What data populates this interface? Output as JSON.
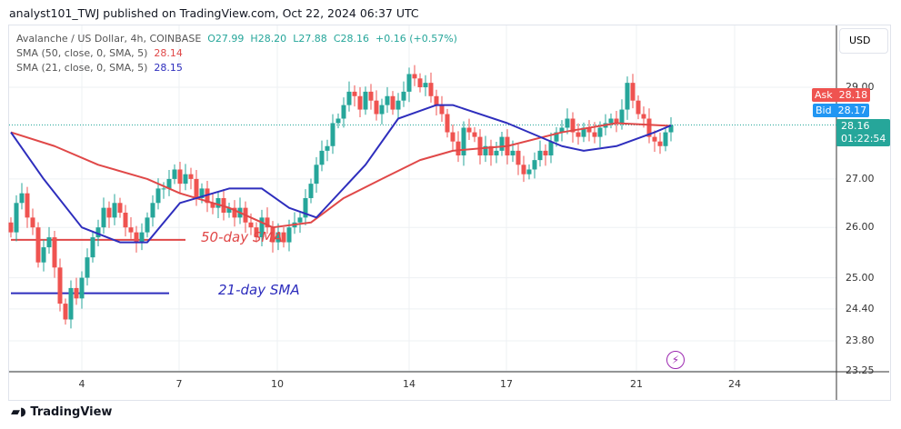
{
  "header": {
    "published": "analyst101_TWJ published on TradingView.com, Oct 22, 2024 06:37 UTC"
  },
  "legend": {
    "symbol": "Avalanche / US Dollar, 4h, COINBASE",
    "o": "O27.99",
    "h": "H28.20",
    "l": "L27.88",
    "c": "C28.16",
    "change": "+0.16 (+0.57%)",
    "sma50_label": "SMA (50, close, 0, SMA, 5)",
    "sma50_value": "28.14",
    "sma21_label": "SMA (21, close, 0, SMA, 5)",
    "sma21_value": "28.15"
  },
  "price_axis": {
    "currency": "USD",
    "scale": "log",
    "ticks": [
      "29.00",
      "27.00",
      "26.00",
      "25.00",
      "24.40",
      "23.80",
      "23.25"
    ],
    "ask_label": "Ask",
    "ask": "28.18",
    "bid_label": "Bid",
    "bid": "28.17",
    "last": "28.16",
    "countdown": "01:22:54"
  },
  "time_axis": {
    "ticks": [
      "4",
      "7",
      "10",
      "14",
      "17",
      "21",
      "24"
    ]
  },
  "annotations": {
    "sma50": "50-day SMA",
    "sma21": "21-day SMA"
  },
  "footer": {
    "brand": "TradingView"
  },
  "colors": {
    "up": "#26a69a",
    "down": "#ef5350",
    "sma50": "#e04848",
    "sma21": "#2e2ebd",
    "ask": "#ef5350",
    "bid": "#2196f3"
  },
  "chart_data": {
    "type": "candlestick",
    "interval": "4h",
    "ylim": [
      23.25,
      29.9
    ],
    "grid": true,
    "closes": [
      25.9,
      26.5,
      26.7,
      26.2,
      26.0,
      25.3,
      25.6,
      25.8,
      25.2,
      24.5,
      24.2,
      24.8,
      24.6,
      25.0,
      25.4,
      25.8,
      26.0,
      26.4,
      26.2,
      26.5,
      26.3,
      26.0,
      25.9,
      25.7,
      25.9,
      26.2,
      26.5,
      26.8,
      26.8,
      27.0,
      27.2,
      26.9,
      27.1,
      27.0,
      26.6,
      26.8,
      26.5,
      26.4,
      26.6,
      26.3,
      26.4,
      26.2,
      26.4,
      26.1,
      26.0,
      25.8,
      26.2,
      26.0,
      25.7,
      25.9,
      25.7,
      26.0,
      26.1,
      26.2,
      26.6,
      26.9,
      27.3,
      27.6,
      27.7,
      28.2,
      28.3,
      28.6,
      28.9,
      28.8,
      28.5,
      28.9,
      28.7,
      28.4,
      28.6,
      28.8,
      28.5,
      28.7,
      28.9,
      29.3,
      29.2,
      29.0,
      29.1,
      28.8,
      28.6,
      28.4,
      28.0,
      27.8,
      27.5,
      28.1,
      28.0,
      27.9,
      27.5,
      27.7,
      27.5,
      27.6,
      27.9,
      27.5,
      27.6,
      27.3,
      27.1,
      27.2,
      27.4,
      27.6,
      27.5,
      27.8,
      28.0,
      28.1,
      28.3,
      28.0,
      27.9,
      28.1,
      28.0,
      27.9,
      28.1,
      28.2,
      28.3,
      28.2,
      28.5,
      29.1,
      28.7,
      28.4,
      28.3,
      27.9,
      27.8,
      27.7,
      28.0,
      28.16
    ],
    "sma50": [
      [
        0,
        28.0
      ],
      [
        8,
        27.7
      ],
      [
        16,
        27.3
      ],
      [
        25,
        27.0
      ],
      [
        31,
        26.7
      ],
      [
        40,
        26.4
      ],
      [
        48,
        26.0
      ],
      [
        55,
        26.1
      ],
      [
        61,
        26.6
      ],
      [
        68,
        27.0
      ],
      [
        75,
        27.4
      ],
      [
        81,
        27.6
      ],
      [
        91,
        27.7
      ],
      [
        101,
        28.0
      ],
      [
        111,
        28.2
      ],
      [
        121,
        28.14
      ]
    ],
    "sma21": [
      [
        0,
        28.0
      ],
      [
        6,
        27.0
      ],
      [
        13,
        26.0
      ],
      [
        20,
        25.7
      ],
      [
        25,
        25.7
      ],
      [
        31,
        26.5
      ],
      [
        40,
        26.8
      ],
      [
        46,
        26.8
      ],
      [
        51,
        26.4
      ],
      [
        56,
        26.2
      ],
      [
        65,
        27.3
      ],
      [
        71,
        28.3
      ],
      [
        78,
        28.6
      ],
      [
        81,
        28.6
      ],
      [
        91,
        28.2
      ],
      [
        101,
        27.7
      ],
      [
        105,
        27.6
      ],
      [
        111,
        27.7
      ],
      [
        118,
        28.0
      ],
      [
        121,
        28.15
      ]
    ],
    "hlines": [
      {
        "price": 25.75,
        "color": "sma50",
        "from": 0,
        "to": 32
      },
      {
        "price": 24.7,
        "color": "sma21",
        "from": 0,
        "to": 29
      }
    ]
  }
}
